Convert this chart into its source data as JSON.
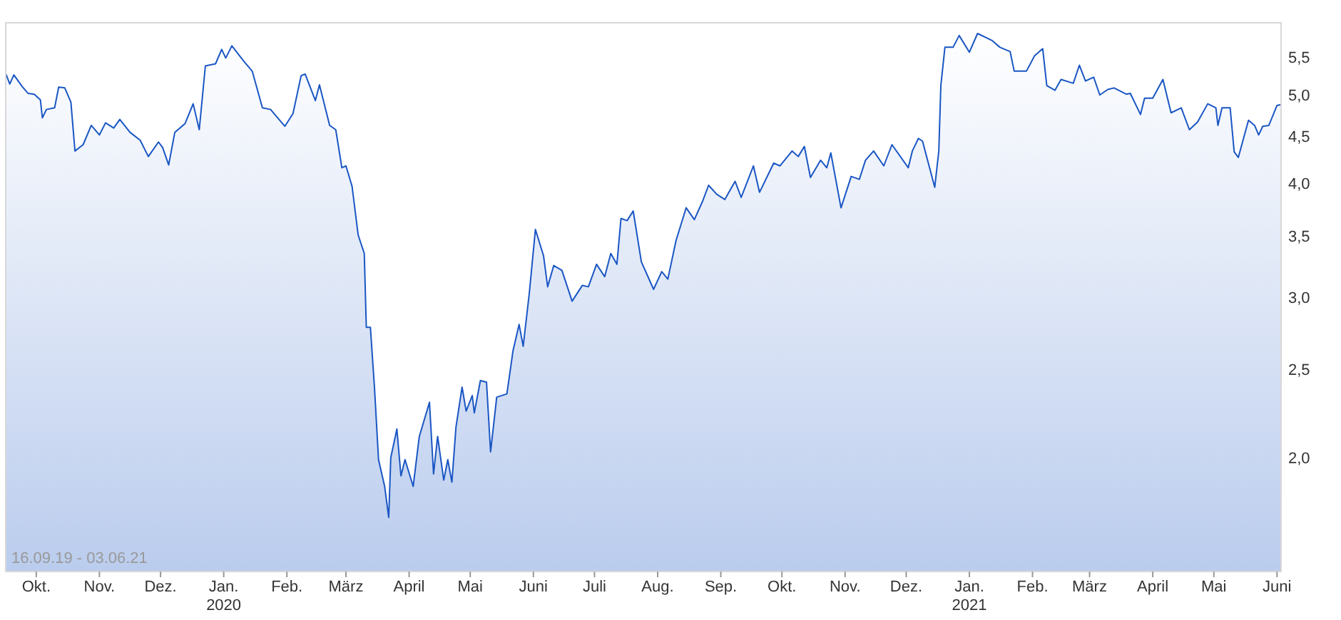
{
  "chart_data": {
    "type": "area",
    "log": "y",
    "grid": false,
    "line_style": "solid",
    "marker": "none",
    "annotations": [
      "16.09.19 - 03.06.21"
    ],
    "xlim": [
      "2019-09-16",
      "2021-06-03"
    ],
    "xticks": [
      {
        "value": "2019-10-01",
        "label": "Okt."
      },
      {
        "value": "2019-11-01",
        "label": "Nov."
      },
      {
        "value": "2019-12-01",
        "label": "Dez."
      },
      {
        "value": "2020-01-01",
        "label": "Jan.\n2020"
      },
      {
        "value": "2020-02-01",
        "label": "Feb."
      },
      {
        "value": "2020-03-01",
        "label": "März"
      },
      {
        "value": "2020-04-01",
        "label": "April"
      },
      {
        "value": "2020-05-01",
        "label": "Mai"
      },
      {
        "value": "2020-06-01",
        "label": "Juni"
      },
      {
        "value": "2020-07-01",
        "label": "Juli"
      },
      {
        "value": "2020-08-01",
        "label": "Aug."
      },
      {
        "value": "2020-09-01",
        "label": "Sep."
      },
      {
        "value": "2020-10-01",
        "label": "Okt."
      },
      {
        "value": "2020-11-01",
        "label": "Nov."
      },
      {
        "value": "2020-12-01",
        "label": "Dez."
      },
      {
        "value": "2021-01-01",
        "label": "Jan.\n2021"
      },
      {
        "value": "2021-02-01",
        "label": "Feb."
      },
      {
        "value": "2021-03-01",
        "label": "März"
      },
      {
        "value": "2021-04-01",
        "label": "April"
      },
      {
        "value": "2021-05-01",
        "label": "Mai"
      },
      {
        "value": "2021-06-01",
        "label": "Juni"
      }
    ],
    "ylim": [
      1.5,
      6.0
    ],
    "yticks": [
      {
        "value": 2,
        "label": "2,0"
      },
      {
        "value": 2.5,
        "label": "2,5"
      },
      {
        "value": 3,
        "label": "3,0"
      },
      {
        "value": 3.5,
        "label": "3,5"
      },
      {
        "value": 4,
        "label": "4,0"
      },
      {
        "value": 4.5,
        "label": "4,5"
      },
      {
        "value": 5,
        "label": "5,0"
      },
      {
        "value": 5.5,
        "label": "5,5"
      }
    ],
    "series": [
      {
        "color": "#1a56c4",
        "x": [
          "2019-09-16",
          "2019-09-18",
          "2019-09-20",
          "2019-09-24",
          "2019-09-27",
          "2019-09-30",
          "2019-10-03",
          "2019-10-04",
          "2019-10-06",
          "2019-10-10",
          "2019-10-12",
          "2019-10-15",
          "2019-10-18",
          "2019-10-20",
          "2019-10-24",
          "2019-10-28",
          "2019-11-01",
          "2019-11-04",
          "2019-11-08",
          "2019-11-11",
          "2019-11-16",
          "2019-11-21",
          "2019-11-25",
          "2019-11-30",
          "2019-12-02",
          "2019-12-05",
          "2019-12-08",
          "2019-12-13",
          "2019-12-17",
          "2019-12-20",
          "2019-12-23",
          "2019-12-28",
          "2019-12-31",
          "2020-01-02",
          "2020-01-05",
          "2020-01-11",
          "2020-01-15",
          "2020-01-20",
          "2020-01-24",
          "2020-01-31",
          "2020-02-04",
          "2020-02-08",
          "2020-02-10",
          "2020-02-15",
          "2020-02-17",
          "2020-02-22",
          "2020-02-25",
          "2020-02-28",
          "2020-03-01",
          "2020-03-04",
          "2020-03-07",
          "2020-03-10",
          "2020-03-11",
          "2020-03-13",
          "2020-03-15",
          "2020-03-17",
          "2020-03-20",
          "2020-03-22",
          "2020-03-23",
          "2020-03-26",
          "2020-03-28",
          "2020-03-30",
          "2020-04-03",
          "2020-04-06",
          "2020-04-11",
          "2020-04-13",
          "2020-04-15",
          "2020-04-18",
          "2020-04-20",
          "2020-04-22",
          "2020-04-24",
          "2020-04-27",
          "2020-04-29",
          "2020-05-02",
          "2020-05-03",
          "2020-05-06",
          "2020-05-09",
          "2020-05-11",
          "2020-05-14",
          "2020-05-19",
          "2020-05-22",
          "2020-05-25",
          "2020-05-27",
          "2020-05-30",
          "2020-06-02",
          "2020-06-06",
          "2020-06-08",
          "2020-06-11",
          "2020-06-15",
          "2020-06-20",
          "2020-06-25",
          "2020-06-28",
          "2020-07-02",
          "2020-07-06",
          "2020-07-09",
          "2020-07-12",
          "2020-07-14",
          "2020-07-17",
          "2020-07-20",
          "2020-07-24",
          "2020-07-30",
          "2020-08-03",
          "2020-08-06",
          "2020-08-10",
          "2020-08-15",
          "2020-08-19",
          "2020-08-23",
          "2020-08-26",
          "2020-08-30",
          "2020-09-03",
          "2020-09-08",
          "2020-09-11",
          "2020-09-17",
          "2020-09-20",
          "2020-09-27",
          "2020-09-30",
          "2020-10-06",
          "2020-10-09",
          "2020-10-12",
          "2020-10-15",
          "2020-10-20",
          "2020-10-23",
          "2020-10-25",
          "2020-10-30",
          "2020-11-04",
          "2020-11-08",
          "2020-11-11",
          "2020-11-15",
          "2020-11-20",
          "2020-11-24",
          "2020-12-02",
          "2020-12-04",
          "2020-12-07",
          "2020-12-09",
          "2020-12-15",
          "2020-12-17",
          "2020-12-18",
          "2020-12-20",
          "2020-12-24",
          "2020-12-27",
          "2021-01-01",
          "2021-01-05",
          "2021-01-12",
          "2021-01-16",
          "2021-01-21",
          "2021-01-23",
          "2021-01-29",
          "2021-02-02",
          "2021-02-06",
          "2021-02-08",
          "2021-02-12",
          "2021-02-15",
          "2021-02-21",
          "2021-02-24",
          "2021-02-27",
          "2021-03-03",
          "2021-03-06",
          "2021-03-10",
          "2021-03-13",
          "2021-03-19",
          "2021-03-21",
          "2021-03-26",
          "2021-03-28",
          "2021-04-01",
          "2021-04-06",
          "2021-04-10",
          "2021-04-15",
          "2021-04-19",
          "2021-04-23",
          "2021-04-28",
          "2021-05-02",
          "2021-05-03",
          "2021-05-05",
          "2021-05-09",
          "2021-05-11",
          "2021-05-13",
          "2021-05-18",
          "2021-05-21",
          "2021-05-23",
          "2021-05-25",
          "2021-05-28",
          "2021-06-01",
          "2021-06-03"
        ],
        "values": [
          5.28,
          5.14,
          5.26,
          5.11,
          5.02,
          5.01,
          4.94,
          4.72,
          4.82,
          4.84,
          5.1,
          5.09,
          4.91,
          4.34,
          4.41,
          4.63,
          4.52,
          4.66,
          4.6,
          4.7,
          4.55,
          4.46,
          4.28,
          4.44,
          4.38,
          4.19,
          4.55,
          4.65,
          4.89,
          4.58,
          5.38,
          5.41,
          5.61,
          5.49,
          5.66,
          5.44,
          5.31,
          4.84,
          4.82,
          4.62,
          4.77,
          5.25,
          5.27,
          4.93,
          5.13,
          4.63,
          4.58,
          4.16,
          4.18,
          3.97,
          3.51,
          3.35,
          2.78,
          2.78,
          2.39,
          1.99,
          1.86,
          1.72,
          2.0,
          2.15,
          1.91,
          1.99,
          1.86,
          2.11,
          2.3,
          1.92,
          2.11,
          1.89,
          1.99,
          1.88,
          2.16,
          2.39,
          2.25,
          2.34,
          2.24,
          2.43,
          2.42,
          2.03,
          2.33,
          2.35,
          2.62,
          2.8,
          2.65,
          3.03,
          3.56,
          3.33,
          3.08,
          3.25,
          3.21,
          2.97,
          3.09,
          3.08,
          3.26,
          3.16,
          3.35,
          3.26,
          3.66,
          3.64,
          3.73,
          3.28,
          3.06,
          3.2,
          3.14,
          3.46,
          3.76,
          3.65,
          3.82,
          3.98,
          3.89,
          3.84,
          4.02,
          3.86,
          4.18,
          3.91,
          4.21,
          4.18,
          4.34,
          4.28,
          4.39,
          4.06,
          4.24,
          4.16,
          4.32,
          3.76,
          4.07,
          4.04,
          4.24,
          4.34,
          4.18,
          4.41,
          4.16,
          4.34,
          4.48,
          4.45,
          3.96,
          4.34,
          5.12,
          5.64,
          5.64,
          5.81,
          5.57,
          5.84,
          5.74,
          5.64,
          5.58,
          5.31,
          5.31,
          5.52,
          5.62,
          5.12,
          5.06,
          5.2,
          5.15,
          5.39,
          5.18,
          5.23,
          5.0,
          5.07,
          5.09,
          5.01,
          5.02,
          4.76,
          4.96,
          4.96,
          5.2,
          4.78,
          4.84,
          4.58,
          4.67,
          4.89,
          4.84,
          4.63,
          4.84,
          4.84,
          4.33,
          4.27,
          4.69,
          4.63,
          4.52,
          4.62,
          4.63,
          4.87,
          4.88
        ]
      }
    ]
  }
}
